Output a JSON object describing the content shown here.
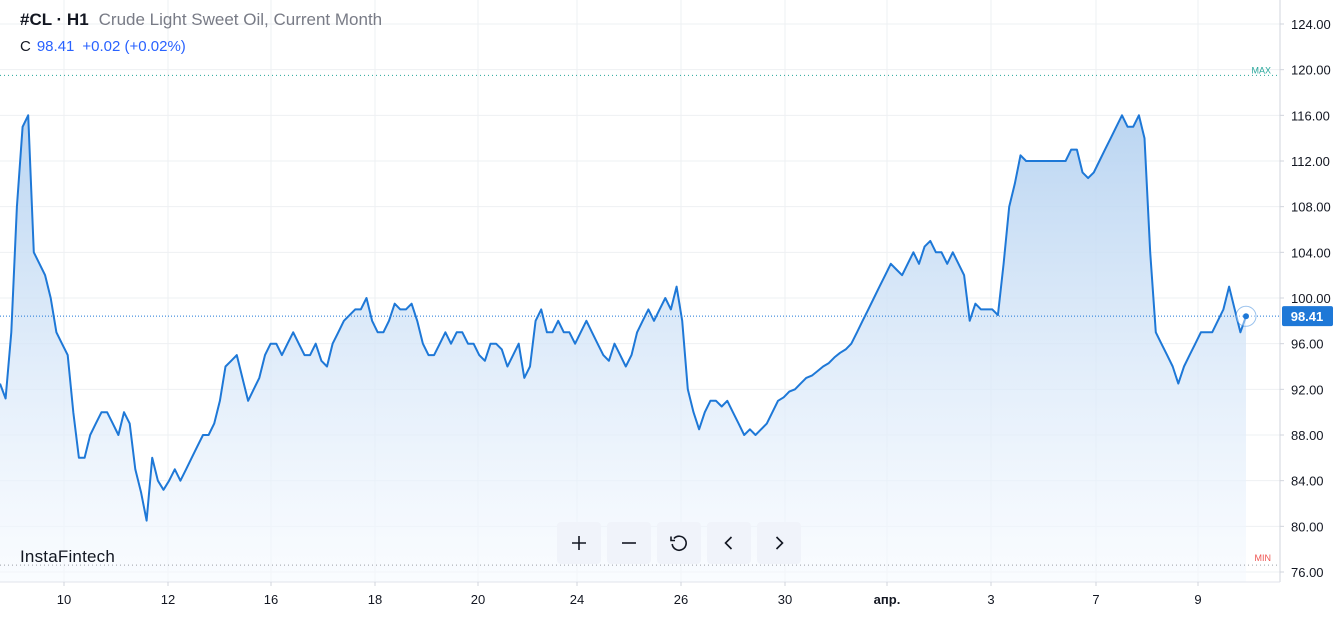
{
  "header": {
    "symbol": "#CL · H1",
    "description": "Crude Light Sweet Oil, Current Month",
    "close_label": "C",
    "close_value": "98.41",
    "change": "+0.02 (+0.02%)"
  },
  "brand": "InstaFintech",
  "toolbar": {
    "zoom_in_icon": "plus-icon",
    "zoom_out_icon": "minus-icon",
    "reset_icon": "reset-icon",
    "prev_icon": "chevron-left-icon",
    "next_icon": "chevron-right-icon"
  },
  "colors": {
    "line": "#1e78d7",
    "area_top": "#b7d3f1",
    "area_bottom": "#f6faff",
    "grid": "#eef0f3",
    "max_marker": "#26a69a",
    "min_marker": "#ef5350",
    "price_tag": "#1e78d7"
  },
  "chart_data": {
    "type": "area",
    "title": "#CL · H1",
    "ylim": [
      75,
      125
    ],
    "y_ticks": [
      "124.00",
      "120.00",
      "116.00",
      "112.00",
      "108.00",
      "104.00",
      "100.00",
      "96.00",
      "92.00",
      "88.00",
      "84.00",
      "80.00",
      "76.00"
    ],
    "x_ticks": [
      "10",
      "12",
      "16",
      "18",
      "20",
      "24",
      "26",
      "30",
      "апр.",
      "3",
      "7",
      "9"
    ],
    "max_label": "MAX",
    "max_value": 119.5,
    "min_label": "MIN",
    "min_value": 76.6,
    "last_price": 98.41,
    "last_price_label": "98.41",
    "grid": true,
    "series": [
      {
        "values": [
          92.5,
          91.2,
          97,
          108,
          115,
          116,
          104,
          103,
          102,
          100,
          97,
          96,
          95,
          90,
          86,
          86,
          88,
          89,
          90,
          90,
          89,
          88,
          90,
          89,
          85,
          83,
          80.5,
          86,
          84,
          83.2,
          84,
          85,
          84,
          85,
          86,
          87,
          88,
          88,
          89,
          91,
          94,
          94.5,
          95,
          93,
          91,
          92,
          93,
          95,
          96,
          96,
          95,
          96,
          97,
          96,
          95,
          95,
          96,
          94.5,
          94,
          96,
          97,
          98,
          98.5,
          99,
          99,
          100,
          98,
          97,
          97,
          98,
          99.5,
          99,
          99,
          99.5,
          98,
          96,
          95,
          95,
          96,
          97,
          96,
          97,
          97,
          96,
          96,
          95,
          94.5,
          96,
          96,
          95.5,
          94,
          95,
          96,
          93,
          94,
          98,
          99,
          97,
          97,
          98,
          97,
          97,
          96,
          97,
          98,
          97,
          96,
          95,
          94.5,
          96,
          95,
          94,
          95,
          97,
          98,
          99,
          98,
          99,
          100,
          99,
          101,
          98,
          92,
          90,
          88.5,
          90,
          91,
          91,
          90.5,
          91,
          90,
          89,
          88,
          88.5,
          88,
          88.5,
          89,
          90,
          91,
          91.3,
          91.8,
          92,
          92.5,
          93,
          93.2,
          93.6,
          94,
          94.3,
          94.8,
          95.2,
          95.5,
          96,
          97,
          98,
          99,
          100,
          101,
          102,
          103,
          102.5,
          102,
          103,
          104,
          103,
          104.5,
          105,
          104,
          104,
          103,
          104,
          103,
          102,
          98,
          99.5,
          99,
          99,
          99,
          98.5,
          103,
          108,
          110,
          112.5,
          112,
          112,
          112,
          112,
          112,
          112,
          112,
          112,
          113,
          113,
          111,
          110.5,
          111,
          112,
          113,
          114,
          115,
          116,
          115,
          115,
          116,
          114,
          104,
          97,
          96,
          95,
          94,
          92.5,
          94,
          95,
          96,
          97,
          97,
          97,
          98,
          99,
          101,
          99,
          97,
          98.4
        ]
      }
    ]
  }
}
